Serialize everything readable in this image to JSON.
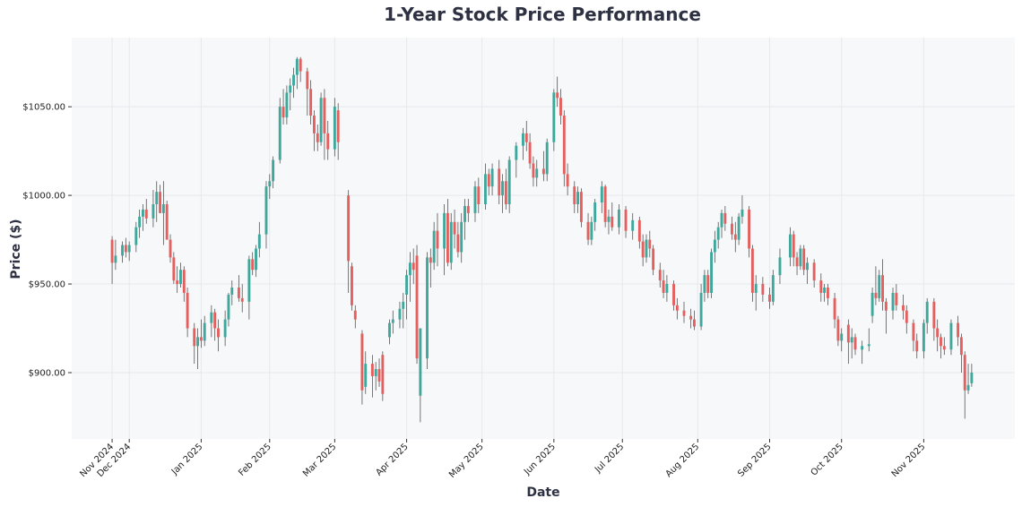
{
  "chart_data": {
    "type": "candlestick",
    "title": "1-Year Stock Price Performance",
    "xlabel": "Date",
    "ylabel": "Price ($)",
    "ylim": [
      862.6,
      1089
    ],
    "xlim": [
      -11.8,
      263.6
    ],
    "grid": true,
    "colors": {
      "up": "#3fa79b",
      "down": "#e4605e",
      "wick": "#555555",
      "background": "#f7f8fa",
      "grid": "#e6e8ec"
    },
    "yticks": [
      {
        "value": 900,
        "label": "$900.00"
      },
      {
        "value": 950,
        "label": "$950.00"
      },
      {
        "value": 1000,
        "label": "$1000.00"
      },
      {
        "value": 1050,
        "label": "$1050.00"
      }
    ],
    "xticks": [
      {
        "index": 0,
        "label": "Nov 2024"
      },
      {
        "index": 5,
        "label": "Dec 2024"
      },
      {
        "index": 26,
        "label": "Jan 2025"
      },
      {
        "index": 46,
        "label": "Feb 2025"
      },
      {
        "index": 65,
        "label": "Mar 2025"
      },
      {
        "index": 86,
        "label": "Apr 2025"
      },
      {
        "index": 108,
        "label": "May 2025"
      },
      {
        "index": 129,
        "label": "Jun 2025"
      },
      {
        "index": 149,
        "label": "Jul 2025"
      },
      {
        "index": 171,
        "label": "Aug 2025"
      },
      {
        "index": 192,
        "label": "Sep 2025"
      },
      {
        "index": 213,
        "label": "Oct 2025"
      },
      {
        "index": 237,
        "label": "Nov 2025"
      }
    ],
    "candle_fields": [
      "index",
      "open",
      "high",
      "low",
      "close"
    ],
    "candles": [
      [
        0,
        975,
        977,
        950,
        962
      ],
      [
        1,
        962,
        975,
        958,
        966
      ],
      [
        3,
        966,
        974,
        962,
        972
      ],
      [
        4,
        972,
        976,
        965,
        968
      ],
      [
        5,
        968,
        974,
        963,
        972
      ],
      [
        7,
        972,
        985,
        968,
        982
      ],
      [
        8,
        982,
        992,
        976,
        988
      ],
      [
        9,
        988,
        995,
        980,
        992
      ],
      [
        10,
        992,
        998,
        984,
        987
      ],
      [
        12,
        987,
        1003,
        982,
        995
      ],
      [
        13,
        995,
        1008,
        985,
        1002
      ],
      [
        14,
        1002,
        1006,
        990,
        990
      ],
      [
        15,
        990,
        1008,
        972,
        995
      ],
      [
        16,
        995,
        997,
        975,
        975
      ],
      [
        17,
        975,
        978,
        962,
        965
      ],
      [
        18,
        965,
        968,
        950,
        952
      ],
      [
        19,
        952,
        960,
        945,
        950
      ],
      [
        20,
        950,
        962,
        948,
        958
      ],
      [
        21,
        958,
        960,
        940,
        945
      ],
      [
        22,
        945,
        948,
        920,
        925
      ],
      [
        24,
        925,
        928,
        905,
        915
      ],
      [
        25,
        915,
        925,
        902,
        920
      ],
      [
        26,
        920,
        930,
        914,
        918
      ],
      [
        27,
        918,
        932,
        915,
        928
      ],
      [
        29,
        928,
        938,
        920,
        934
      ],
      [
        30,
        934,
        936,
        918,
        925
      ],
      [
        31,
        925,
        930,
        912,
        920
      ],
      [
        33,
        920,
        935,
        915,
        930
      ],
      [
        34,
        930,
        945,
        926,
        944
      ],
      [
        35,
        944,
        952,
        938,
        948
      ],
      [
        37,
        948,
        955,
        940,
        942
      ],
      [
        38,
        942,
        950,
        934,
        940
      ],
      [
        40,
        940,
        966,
        930,
        964
      ],
      [
        41,
        964,
        968,
        955,
        958
      ],
      [
        42,
        958,
        972,
        954,
        970
      ],
      [
        43,
        970,
        985,
        965,
        978
      ],
      [
        45,
        978,
        1008,
        970,
        1005
      ],
      [
        46,
        1005,
        1012,
        998,
        1008
      ],
      [
        47,
        1008,
        1022,
        1004,
        1020
      ],
      [
        49,
        1020,
        1055,
        1018,
        1050
      ],
      [
        50,
        1050,
        1060,
        1040,
        1044
      ],
      [
        51,
        1044,
        1062,
        1040,
        1058
      ],
      [
        52,
        1058,
        1066,
        1048,
        1062
      ],
      [
        53,
        1062,
        1072,
        1055,
        1068
      ],
      [
        54,
        1068,
        1078,
        1060,
        1077
      ],
      [
        55,
        1077,
        1078,
        1064,
        1070
      ],
      [
        57,
        1070,
        1072,
        1045,
        1060
      ],
      [
        58,
        1060,
        1065,
        1040,
        1045
      ],
      [
        59,
        1045,
        1048,
        1025,
        1035
      ],
      [
        60,
        1035,
        1040,
        1025,
        1030
      ],
      [
        61,
        1030,
        1058,
        1028,
        1055
      ],
      [
        62,
        1055,
        1060,
        1020,
        1035
      ],
      [
        63,
        1035,
        1042,
        1020,
        1026
      ],
      [
        65,
        1026,
        1055,
        1022,
        1050
      ],
      [
        66,
        1048,
        1052,
        1020,
        1030
      ],
      [
        69,
        1000,
        1003,
        945,
        963
      ],
      [
        70,
        960,
        962,
        935,
        938
      ],
      [
        71,
        935,
        938,
        925,
        930
      ],
      [
        73,
        922,
        924,
        882,
        890
      ],
      [
        74,
        892,
        912,
        888,
        905
      ],
      [
        76,
        905,
        910,
        886,
        898
      ],
      [
        77,
        898,
        906,
        890,
        902
      ],
      [
        78,
        902,
        908,
        892,
        895
      ],
      [
        79,
        910,
        912,
        884,
        888
      ],
      [
        81,
        920,
        930,
        916,
        928
      ],
      [
        82,
        928,
        935,
        922,
        930
      ],
      [
        84,
        930,
        940,
        925,
        936
      ],
      [
        85,
        936,
        945,
        925,
        940
      ],
      [
        86,
        944,
        958,
        930,
        955
      ],
      [
        87,
        955,
        968,
        940,
        962
      ],
      [
        88,
        962,
        970,
        950,
        958
      ],
      [
        89,
        966,
        972,
        905,
        908
      ],
      [
        90,
        887,
        925,
        872,
        925
      ],
      [
        92,
        908,
        968,
        902,
        965
      ],
      [
        93,
        965,
        970,
        948,
        962
      ],
      [
        94,
        962,
        985,
        958,
        980
      ],
      [
        95,
        980,
        990,
        960,
        970
      ],
      [
        97,
        970,
        995,
        955,
        990
      ],
      [
        98,
        990,
        998,
        960,
        962
      ],
      [
        99,
        962,
        990,
        958,
        985
      ],
      [
        100,
        985,
        992,
        970,
        978
      ],
      [
        101,
        978,
        985,
        965,
        968
      ],
      [
        102,
        968,
        990,
        962,
        985
      ],
      [
        103,
        985,
        998,
        975,
        994
      ],
      [
        104,
        994,
        998,
        985,
        990
      ],
      [
        106,
        990,
        1008,
        985,
        1005
      ],
      [
        107,
        1005,
        1010,
        990,
        995
      ],
      [
        109,
        995,
        1018,
        992,
        1012
      ],
      [
        110,
        1012,
        1015,
        1000,
        1005
      ],
      [
        111,
        1005,
        1018,
        1000,
        1015
      ],
      [
        113,
        1015,
        1020,
        995,
        1000
      ],
      [
        114,
        1000,
        1012,
        990,
        1008
      ],
      [
        115,
        1008,
        1015,
        992,
        995
      ],
      [
        116,
        995,
        1022,
        990,
        1020
      ],
      [
        118,
        1020,
        1030,
        1010,
        1028
      ],
      [
        120,
        1028,
        1038,
        1020,
        1035
      ],
      [
        121,
        1035,
        1042,
        1025,
        1030
      ],
      [
        122,
        1030,
        1035,
        1015,
        1018
      ],
      [
        123,
        1018,
        1022,
        1005,
        1010
      ],
      [
        124,
        1010,
        1020,
        1005,
        1015
      ],
      [
        126,
        1015,
        1025,
        1008,
        1012
      ],
      [
        127,
        1012,
        1032,
        1008,
        1030
      ],
      [
        129,
        1030,
        1060,
        1025,
        1058
      ],
      [
        130,
        1058,
        1067,
        1050,
        1055
      ],
      [
        131,
        1055,
        1060,
        1040,
        1045
      ],
      [
        132,
        1045,
        1048,
        1005,
        1012
      ],
      [
        133,
        1012,
        1018,
        1000,
        1005
      ],
      [
        135,
        1005,
        1008,
        990,
        995
      ],
      [
        136,
        995,
        1005,
        990,
        1002
      ],
      [
        137,
        1002,
        1004,
        982,
        985
      ],
      [
        139,
        985,
        990,
        972,
        975
      ],
      [
        140,
        975,
        988,
        972,
        985
      ],
      [
        141,
        985,
        998,
        980,
        996
      ],
      [
        143,
        996,
        1008,
        990,
        1005
      ],
      [
        144,
        1005,
        1006,
        982,
        985
      ],
      [
        145,
        985,
        992,
        978,
        988
      ],
      [
        146,
        988,
        996,
        980,
        982
      ],
      [
        148,
        982,
        995,
        978,
        992
      ],
      [
        150,
        992,
        994,
        976,
        980
      ],
      [
        152,
        980,
        990,
        975,
        986
      ],
      [
        154,
        986,
        988,
        970,
        974
      ],
      [
        155,
        974,
        978,
        960,
        965
      ],
      [
        156,
        965,
        978,
        962,
        975
      ],
      [
        157,
        975,
        980,
        965,
        970
      ],
      [
        158,
        970,
        972,
        955,
        958
      ],
      [
        160,
        958,
        962,
        948,
        952
      ],
      [
        161,
        952,
        958,
        942,
        945
      ],
      [
        162,
        945,
        955,
        940,
        950
      ],
      [
        164,
        950,
        952,
        935,
        938
      ],
      [
        165,
        938,
        942,
        930,
        935
      ],
      [
        167,
        935,
        940,
        928,
        932
      ],
      [
        169,
        932,
        936,
        925,
        930
      ],
      [
        170,
        930,
        935,
        924,
        926
      ],
      [
        172,
        926,
        950,
        924,
        945
      ],
      [
        173,
        945,
        958,
        940,
        955
      ],
      [
        174,
        955,
        958,
        942,
        945
      ],
      [
        175,
        945,
        970,
        942,
        968
      ],
      [
        176,
        968,
        980,
        962,
        975
      ],
      [
        177,
        975,
        985,
        970,
        982
      ],
      [
        178,
        982,
        992,
        976,
        990
      ],
      [
        179,
        990,
        994,
        980,
        984
      ],
      [
        181,
        984,
        988,
        975,
        978
      ],
      [
        182,
        978,
        985,
        968,
        975
      ],
      [
        183,
        975,
        990,
        972,
        988
      ],
      [
        184,
        988,
        1000,
        984,
        992
      ],
      [
        186,
        992,
        994,
        965,
        970
      ],
      [
        187,
        970,
        972,
        940,
        945
      ],
      [
        188,
        945,
        955,
        935,
        950
      ],
      [
        190,
        950,
        954,
        940,
        944
      ],
      [
        192,
        944,
        948,
        936,
        940
      ],
      [
        193,
        940,
        958,
        938,
        955
      ],
      [
        195,
        955,
        970,
        950,
        965
      ],
      [
        198,
        965,
        982,
        960,
        978
      ],
      [
        199,
        978,
        980,
        960,
        965
      ],
      [
        200,
        965,
        968,
        955,
        960
      ],
      [
        201,
        960,
        972,
        958,
        970
      ],
      [
        202,
        970,
        972,
        955,
        958
      ],
      [
        203,
        958,
        965,
        950,
        962
      ],
      [
        205,
        962,
        964,
        948,
        952
      ],
      [
        207,
        952,
        956,
        940,
        945
      ],
      [
        208,
        945,
        950,
        940,
        948
      ],
      [
        209,
        948,
        950,
        938,
        942
      ],
      [
        211,
        942,
        945,
        925,
        930
      ],
      [
        212,
        930,
        932,
        915,
        918
      ],
      [
        213,
        918,
        925,
        912,
        922
      ],
      [
        215,
        927,
        930,
        905,
        917
      ],
      [
        216,
        917,
        925,
        908,
        920
      ],
      [
        217,
        920,
        922,
        910,
        913
      ],
      [
        219,
        913,
        918,
        905,
        915
      ],
      [
        221,
        915,
        925,
        912,
        916
      ],
      [
        222,
        932,
        948,
        928,
        945
      ],
      [
        223,
        945,
        960,
        938,
        942
      ],
      [
        224,
        942,
        958,
        940,
        955
      ],
      [
        225,
        955,
        964,
        935,
        940
      ],
      [
        226,
        940,
        942,
        922,
        935
      ],
      [
        228,
        935,
        948,
        930,
        945
      ],
      [
        229,
        945,
        950,
        935,
        938
      ],
      [
        231,
        938,
        944,
        930,
        935
      ],
      [
        232,
        935,
        938,
        922,
        928
      ],
      [
        234,
        928,
        930,
        912,
        918
      ],
      [
        235,
        918,
        922,
        908,
        912
      ],
      [
        237,
        912,
        930,
        908,
        928
      ],
      [
        238,
        928,
        942,
        922,
        940
      ],
      [
        240,
        940,
        942,
        918,
        925
      ],
      [
        241,
        925,
        930,
        912,
        920
      ],
      [
        242,
        920,
        922,
        908,
        915
      ],
      [
        243,
        915,
        920,
        910,
        913
      ],
      [
        245,
        913,
        930,
        910,
        928
      ],
      [
        247,
        928,
        932,
        915,
        920
      ],
      [
        248,
        920,
        922,
        900,
        910
      ],
      [
        249,
        910,
        912,
        874,
        890
      ],
      [
        250,
        890,
        905,
        888,
        893
      ],
      [
        251,
        894,
        905,
        892,
        900
      ]
    ]
  }
}
